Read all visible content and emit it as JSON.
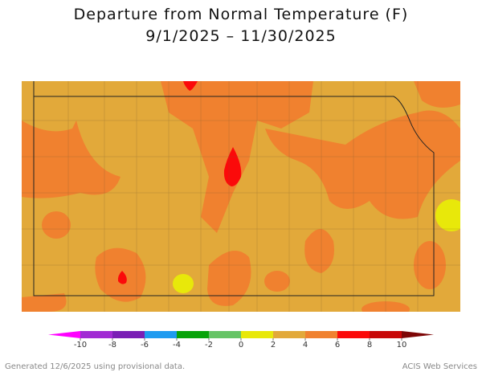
{
  "title": [
    "Departure from Normal Temperature (F)",
    "9/1/2025 – 11/30/2025"
  ],
  "legend": {
    "ticks": [
      -10,
      -8,
      -6,
      -4,
      -2,
      0,
      2,
      4,
      6,
      8,
      10
    ],
    "colors": [
      "#ff00ff",
      "#a12bd3",
      "#7a1fb5",
      "#1e9bf0",
      "#07a30a",
      "#66c466",
      "#e8e80a",
      "#e2a93a",
      "#f0812f",
      "#fb0a0a",
      "#c80808",
      "#7d0606"
    ]
  },
  "footer": {
    "left": "Generated 12/6/2025 using provisional data.",
    "right": "ACIS Web Services"
  }
}
